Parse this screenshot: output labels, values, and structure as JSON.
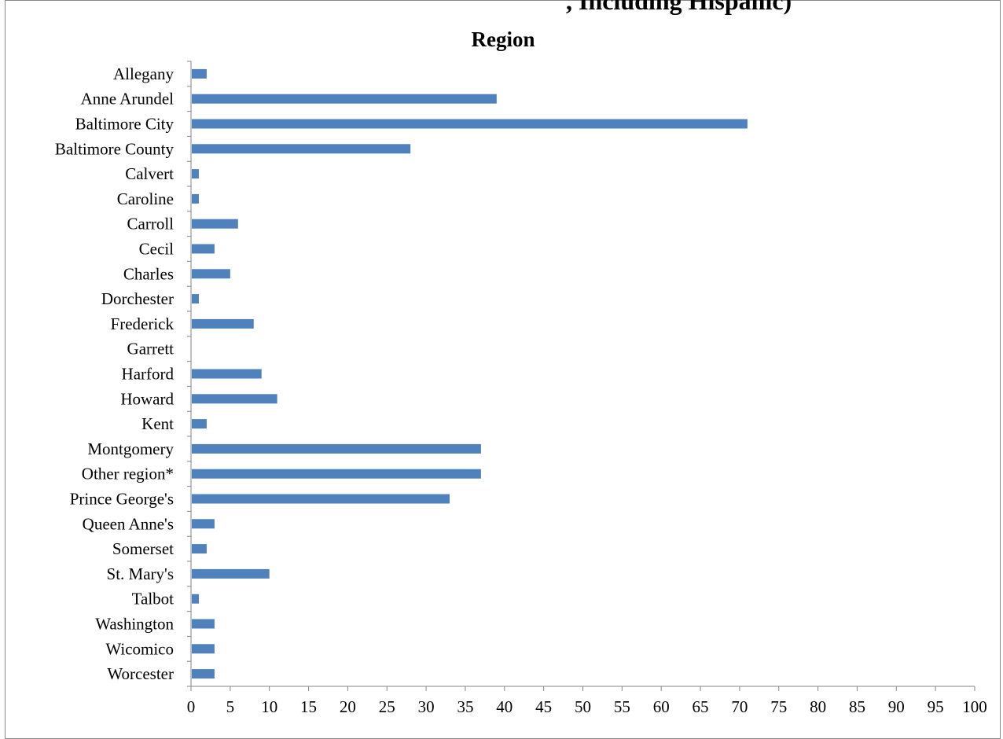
{
  "header": {
    "cut_title": ", Including Hispanic)"
  },
  "chart_data": {
    "type": "bar",
    "orientation": "horizontal",
    "title": "Region",
    "xlabel": "",
    "ylabel": "",
    "xlim": [
      0,
      100
    ],
    "x_ticks": [
      0,
      5,
      10,
      15,
      20,
      25,
      30,
      35,
      40,
      45,
      50,
      55,
      60,
      65,
      70,
      75,
      80,
      85,
      90,
      95,
      100
    ],
    "grid": false,
    "bar_color": "#4f81bd",
    "categories": [
      "Allegany",
      "Anne Arundel",
      "Baltimore City",
      "Baltimore County",
      "Calvert",
      "Caroline",
      "Carroll",
      "Cecil",
      "Charles",
      "Dorchester",
      "Frederick",
      "Garrett",
      "Harford",
      "Howard",
      "Kent",
      "Montgomery",
      "Other region*",
      "Prince George's",
      "Queen Anne's",
      "Somerset",
      "St. Mary's",
      "Talbot",
      "Washington",
      "Wicomico",
      "Worcester"
    ],
    "values": [
      2,
      39,
      71,
      28,
      1,
      1,
      6,
      3,
      5,
      1,
      8,
      0,
      9,
      11,
      2,
      37,
      37,
      33,
      3,
      2,
      10,
      1,
      3,
      3,
      3
    ]
  }
}
